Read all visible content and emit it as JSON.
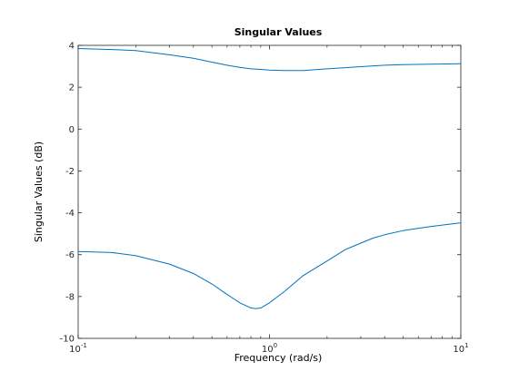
{
  "chart_data": {
    "type": "line",
    "title": "Singular Values",
    "xlabel": "Frequency (rad/s)",
    "ylabel": "Singular Values (dB)",
    "xscale": "log",
    "xlim": [
      0.1,
      10
    ],
    "ylim": [
      -10,
      4
    ],
    "grid": false,
    "x_ticks": [
      {
        "value": 0.1,
        "base": "10",
        "exp": "-1"
      },
      {
        "value": 1,
        "base": "10",
        "exp": "0"
      },
      {
        "value": 10,
        "base": "10",
        "exp": "1"
      }
    ],
    "y_ticks": [
      {
        "value": 4,
        "label": "4"
      },
      {
        "value": 2,
        "label": "2"
      },
      {
        "value": 0,
        "label": "0"
      },
      {
        "value": -2,
        "label": "-2"
      },
      {
        "value": -4,
        "label": "-4"
      },
      {
        "value": -6,
        "label": "-6"
      },
      {
        "value": -8,
        "label": "-8"
      },
      {
        "value": -10,
        "label": "-10"
      }
    ],
    "line_color": "#0072bd",
    "series": [
      {
        "x": [
          0.1,
          0.15,
          0.2,
          0.3,
          0.4,
          0.5,
          0.6,
          0.7,
          0.8,
          0.9,
          1.0,
          1.2,
          1.5,
          2.0,
          3.0,
          4.0,
          5.0,
          7.0,
          10.0
        ],
        "values": [
          3.85,
          3.8,
          3.75,
          3.55,
          3.38,
          3.2,
          3.05,
          2.95,
          2.88,
          2.85,
          2.82,
          2.8,
          2.8,
          2.88,
          2.98,
          3.05,
          3.08,
          3.1,
          3.12
        ]
      },
      {
        "x": [
          0.1,
          0.15,
          0.2,
          0.3,
          0.4,
          0.5,
          0.6,
          0.7,
          0.8,
          0.85,
          0.9,
          1.0,
          1.2,
          1.5,
          2.0,
          2.5,
          3.0,
          3.5,
          4.0,
          5.0,
          7.0,
          10.0
        ],
        "values": [
          -5.85,
          -5.9,
          -6.05,
          -6.45,
          -6.9,
          -7.4,
          -7.9,
          -8.3,
          -8.55,
          -8.58,
          -8.55,
          -8.3,
          -7.75,
          -7.0,
          -6.3,
          -5.75,
          -5.45,
          -5.2,
          -5.05,
          -4.85,
          -4.65,
          -4.48
        ]
      }
    ]
  }
}
